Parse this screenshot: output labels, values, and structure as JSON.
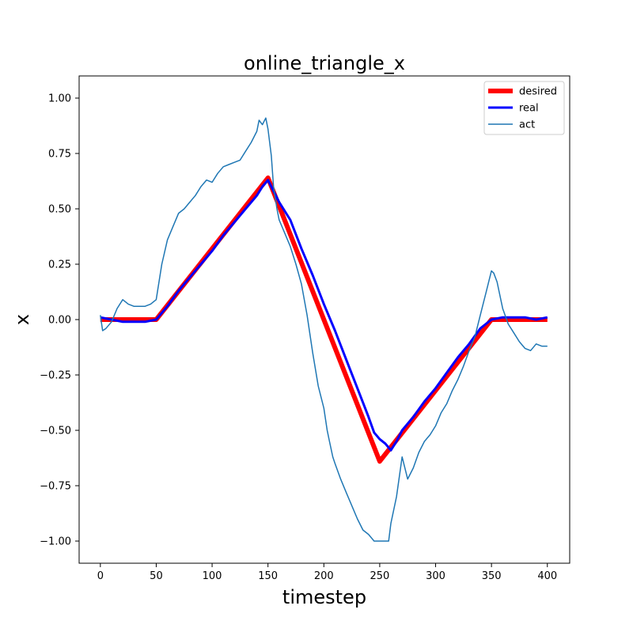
{
  "chart_data": {
    "type": "line",
    "title": "online_triangle_x",
    "xlabel": "timestep",
    "ylabel": "x",
    "xlim": [
      -19,
      420
    ],
    "ylim": [
      -1.1,
      1.1
    ],
    "xticks": [
      0,
      50,
      100,
      150,
      200,
      250,
      300,
      350,
      400
    ],
    "xtick_labels": [
      "0",
      "50",
      "100",
      "150",
      "200",
      "250",
      "300",
      "350",
      "400"
    ],
    "yticks": [
      1.0,
      0.75,
      0.5,
      0.25,
      0.0,
      -0.25,
      -0.5,
      -0.75,
      -1.0
    ],
    "ytick_labels": [
      "1.00",
      "0.75",
      "0.50",
      "0.25",
      "0.00",
      "−0.25",
      "−0.50",
      "−0.75",
      "−1.00"
    ],
    "grid": false,
    "legend_position": "top-right",
    "series": [
      {
        "name": "desired",
        "color": "#ff0000",
        "x": [
          0,
          50,
          150,
          250,
          350,
          400
        ],
        "y": [
          0.0,
          0.0,
          0.64,
          -0.64,
          0.0,
          0.0
        ]
      },
      {
        "name": "real",
        "color": "#0000ff",
        "x": [
          0,
          10,
          20,
          30,
          40,
          50,
          60,
          70,
          80,
          90,
          100,
          110,
          120,
          130,
          140,
          145,
          150,
          155,
          160,
          170,
          180,
          190,
          200,
          210,
          220,
          230,
          240,
          245,
          250,
          255,
          260,
          265,
          270,
          280,
          290,
          300,
          310,
          320,
          330,
          340,
          350,
          360,
          370,
          380,
          390,
          400
        ],
        "y": [
          0.01,
          0.0,
          -0.01,
          -0.01,
          -0.01,
          0.0,
          0.06,
          0.13,
          0.19,
          0.25,
          0.31,
          0.38,
          0.44,
          0.5,
          0.56,
          0.6,
          0.63,
          0.58,
          0.53,
          0.45,
          0.32,
          0.2,
          0.07,
          -0.05,
          -0.18,
          -0.31,
          -0.44,
          -0.51,
          -0.54,
          -0.56,
          -0.59,
          -0.55,
          -0.5,
          -0.44,
          -0.37,
          -0.31,
          -0.24,
          -0.17,
          -0.11,
          -0.04,
          0.0,
          0.01,
          0.01,
          0.01,
          0.0,
          0.01
        ]
      },
      {
        "name": "act",
        "color": "#1f77b4",
        "x": [
          0,
          2,
          5,
          10,
          15,
          20,
          25,
          30,
          35,
          40,
          45,
          50,
          55,
          60,
          65,
          70,
          75,
          80,
          85,
          90,
          95,
          100,
          105,
          110,
          115,
          120,
          125,
          130,
          135,
          140,
          142,
          145,
          148,
          150,
          153,
          155,
          158,
          160,
          165,
          170,
          175,
          180,
          185,
          190,
          195,
          200,
          203,
          205,
          208,
          210,
          215,
          220,
          225,
          230,
          235,
          240,
          245,
          250,
          255,
          258,
          260,
          265,
          270,
          275,
          280,
          285,
          290,
          295,
          300,
          305,
          310,
          315,
          320,
          325,
          330,
          335,
          340,
          345,
          348,
          350,
          352,
          355,
          360,
          365,
          370,
          375,
          380,
          385,
          390,
          395,
          400
        ],
        "y": [
          0.02,
          -0.05,
          -0.04,
          -0.01,
          0.05,
          0.09,
          0.07,
          0.06,
          0.06,
          0.06,
          0.07,
          0.09,
          0.25,
          0.36,
          0.42,
          0.48,
          0.5,
          0.53,
          0.56,
          0.6,
          0.63,
          0.62,
          0.66,
          0.69,
          0.7,
          0.71,
          0.72,
          0.76,
          0.8,
          0.85,
          0.9,
          0.88,
          0.91,
          0.86,
          0.74,
          0.6,
          0.5,
          0.45,
          0.39,
          0.33,
          0.25,
          0.16,
          0.02,
          -0.15,
          -0.3,
          -0.4,
          -0.5,
          -0.55,
          -0.62,
          -0.65,
          -0.72,
          -0.78,
          -0.84,
          -0.9,
          -0.95,
          -0.97,
          -1.0,
          -1.0,
          -1.0,
          -1.0,
          -0.92,
          -0.8,
          -0.62,
          -0.72,
          -0.67,
          -0.6,
          -0.55,
          -0.52,
          -0.48,
          -0.42,
          -0.38,
          -0.32,
          -0.27,
          -0.21,
          -0.14,
          -0.08,
          0.02,
          0.12,
          0.18,
          0.22,
          0.21,
          0.17,
          0.05,
          -0.02,
          -0.06,
          -0.1,
          -0.13,
          -0.14,
          -0.11,
          -0.12,
          -0.12
        ]
      }
    ]
  }
}
